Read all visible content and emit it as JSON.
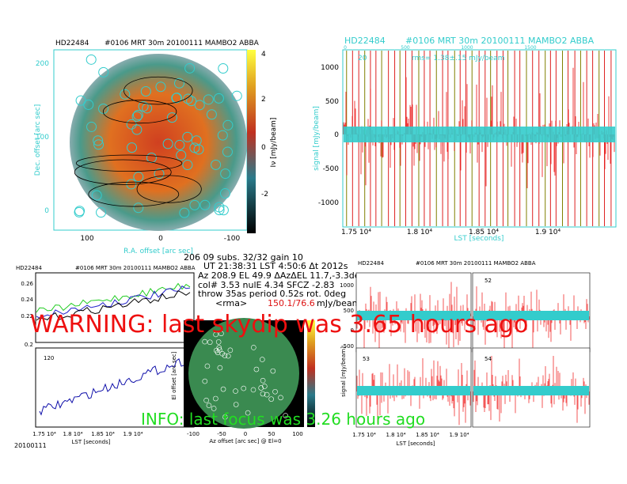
{
  "top_map": {
    "source": "HD22484",
    "header": "#0106 MRT 30m  20100111 MAMBO2 ABBA",
    "yticks": [
      "200",
      "100",
      "0"
    ],
    "xticks": [
      "100",
      "0",
      "-100"
    ],
    "xlabel": "R.A. offset [arc sec]",
    "ylabel": "Dec. offset [arc sec]",
    "cbar_ticks": [
      "4",
      "2",
      "0",
      "-2"
    ],
    "cbar_label": "Iν [mJy/beam]"
  },
  "signal": {
    "source": "HD22484",
    "header": "#0106 MRT 30m  20100111 MAMBO2 ABBA",
    "top_ticks": [
      "0",
      "500",
      "1000",
      "1500"
    ],
    "channel": "20",
    "rms": "rms= 1.38±.15 mJy/beam",
    "yticks": [
      "1000",
      "500",
      "0",
      "-500",
      "-1000"
    ],
    "ylabel": "signal [mJy/beam]",
    "xticks": [
      "1.75 10⁴",
      "1.8 10⁴",
      "1.85 10⁴",
      "1.9 10⁴"
    ],
    "xlabel": "LST [seconds]"
  },
  "gain": {
    "source": "HD22484",
    "header": "#0106 MRT 30m  20100111  MAMBO2 ABBA",
    "upper_yticks": [
      "0.26",
      "0.24",
      "0.22",
      "0.2"
    ],
    "channel": "120",
    "xticks": [
      "1.75 10⁴",
      "1.8 10⁴",
      "1.85 10⁴",
      "1.9 10⁴"
    ],
    "xlabel": "LST [seconds]",
    "date": "20100111"
  },
  "status": {
    "line1": "206 09  subs. 32/32 gain 10",
    "line2": "UT 21:38:31 LST 4:50:6 Δt 2012s",
    "line3": "Az 208.9  EL 49.9 ΔAzΔEL 11.7,-3.3deg",
    "line4": "col# 3.53 nulE 4.34 SFCZ -2.83",
    "line5": "throw 35as period 0.52s rot. 0deg",
    "rms_label": "<rma>",
    "rms_value": "150.1/76.6",
    "rms_unit": "mJy/beam"
  },
  "small_map": {
    "xticks": [
      "-100",
      "-50",
      "0",
      "50",
      "100"
    ],
    "xlabel": "Az offset [arc sec] @ El=0",
    "ylabel": "El offset [arc sec]"
  },
  "subscans": {
    "source": "HD22484",
    "header": "#0106 MRT 30m  20100111 MAMBO2 ABBA",
    "channels": [
      "52",
      "53",
      "54"
    ],
    "yticks": [
      "1000",
      "500",
      "0",
      "-500"
    ],
    "ylabel": "signal [mJy/beam]",
    "xticks": [
      "1.75 10⁴",
      "1.8 10⁴",
      "1.85 10⁴",
      "1.9 10⁴"
    ],
    "xlabel": "LST [seconds]"
  },
  "alerts": {
    "warning": "WARNING: last skydip was 3.65 hours ago",
    "info": "INFO: last focus was 3.26 hours ago"
  }
}
